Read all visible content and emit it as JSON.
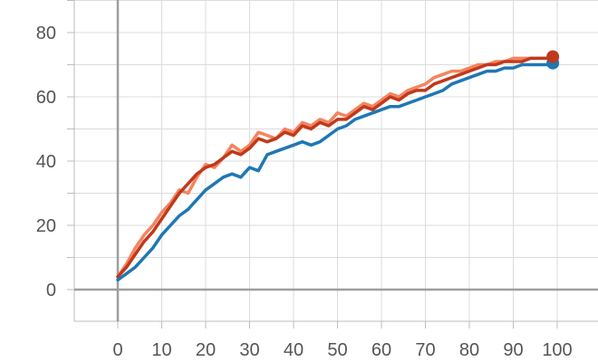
{
  "chart_data": {
    "type": "line",
    "title": "",
    "xlabel": "",
    "ylabel": "",
    "xlim": [
      -10,
      110
    ],
    "ylim": [
      -10,
      90
    ],
    "xticks": [
      0,
      10,
      20,
      30,
      40,
      50,
      60,
      70,
      80,
      90,
      100
    ],
    "xtick_labels": [
      "0",
      "10",
      "20",
      "30",
      "40",
      "50",
      "60",
      "70",
      "80",
      "90",
      "100"
    ],
    "yticks": [
      0,
      20,
      40,
      60,
      80
    ],
    "ytick_labels": [
      "0",
      "20",
      "40",
      "60",
      "80"
    ],
    "grid": true,
    "series": [
      {
        "color": "#f4845f",
        "x": [
          0,
          2,
          4,
          6,
          8,
          10,
          12,
          14,
          16,
          18,
          20,
          22,
          24,
          26,
          28,
          30,
          32,
          34,
          36,
          38,
          40,
          42,
          44,
          46,
          48,
          50,
          52,
          54,
          56,
          58,
          60,
          62,
          64,
          66,
          68,
          70,
          72,
          74,
          76,
          78,
          80,
          82,
          84,
          86,
          88,
          90,
          92,
          94,
          96,
          98,
          99
        ],
        "y": [
          4,
          8,
          13,
          17,
          20,
          24,
          27,
          31,
          30,
          35,
          39,
          38,
          41,
          45,
          43,
          45,
          49,
          48,
          47,
          50,
          49,
          52,
          51,
          53,
          52,
          55,
          54,
          56,
          58,
          57,
          59,
          61,
          60,
          62,
          63,
          64,
          66,
          67,
          68,
          68,
          69,
          70,
          70,
          71,
          71,
          72,
          72,
          72,
          72,
          72,
          72
        ]
      },
      {
        "color": "#c0391b",
        "x": [
          0,
          2,
          4,
          6,
          8,
          10,
          12,
          14,
          16,
          18,
          20,
          22,
          24,
          26,
          28,
          30,
          32,
          34,
          36,
          38,
          40,
          42,
          44,
          46,
          48,
          50,
          52,
          54,
          56,
          58,
          60,
          62,
          64,
          66,
          68,
          70,
          72,
          74,
          76,
          78,
          80,
          82,
          84,
          86,
          88,
          90,
          92,
          94,
          96,
          98,
          99
        ],
        "y": [
          4,
          7,
          11,
          15,
          18,
          22,
          26,
          30,
          33,
          36,
          38,
          39,
          41,
          43,
          42,
          44,
          47,
          46,
          47,
          49,
          48,
          51,
          50,
          52,
          51,
          53,
          53,
          55,
          57,
          56,
          58,
          60,
          59,
          61,
          62,
          62,
          64,
          65,
          66,
          67,
          68,
          69,
          70,
          70,
          71,
          71,
          71,
          72,
          72,
          72,
          72.5
        ]
      },
      {
        "color": "#1f77b4",
        "x": [
          0,
          2,
          4,
          6,
          8,
          10,
          12,
          14,
          16,
          18,
          20,
          22,
          24,
          26,
          28,
          30,
          32,
          34,
          36,
          38,
          40,
          42,
          44,
          46,
          48,
          50,
          52,
          54,
          56,
          58,
          60,
          62,
          64,
          66,
          68,
          70,
          72,
          74,
          76,
          78,
          80,
          82,
          84,
          86,
          88,
          90,
          92,
          94,
          96,
          98,
          99
        ],
        "y": [
          3,
          5,
          7,
          10,
          13,
          17,
          20,
          23,
          25,
          28,
          31,
          33,
          35,
          36,
          35,
          38,
          37,
          42,
          43,
          44,
          45,
          46,
          45,
          46,
          48,
          50,
          51,
          53,
          54,
          55,
          56,
          57,
          57,
          58,
          59,
          60,
          61,
          62,
          64,
          65,
          66,
          67,
          68,
          68,
          69,
          69,
          70,
          70,
          70,
          70,
          70.5
        ]
      }
    ]
  }
}
